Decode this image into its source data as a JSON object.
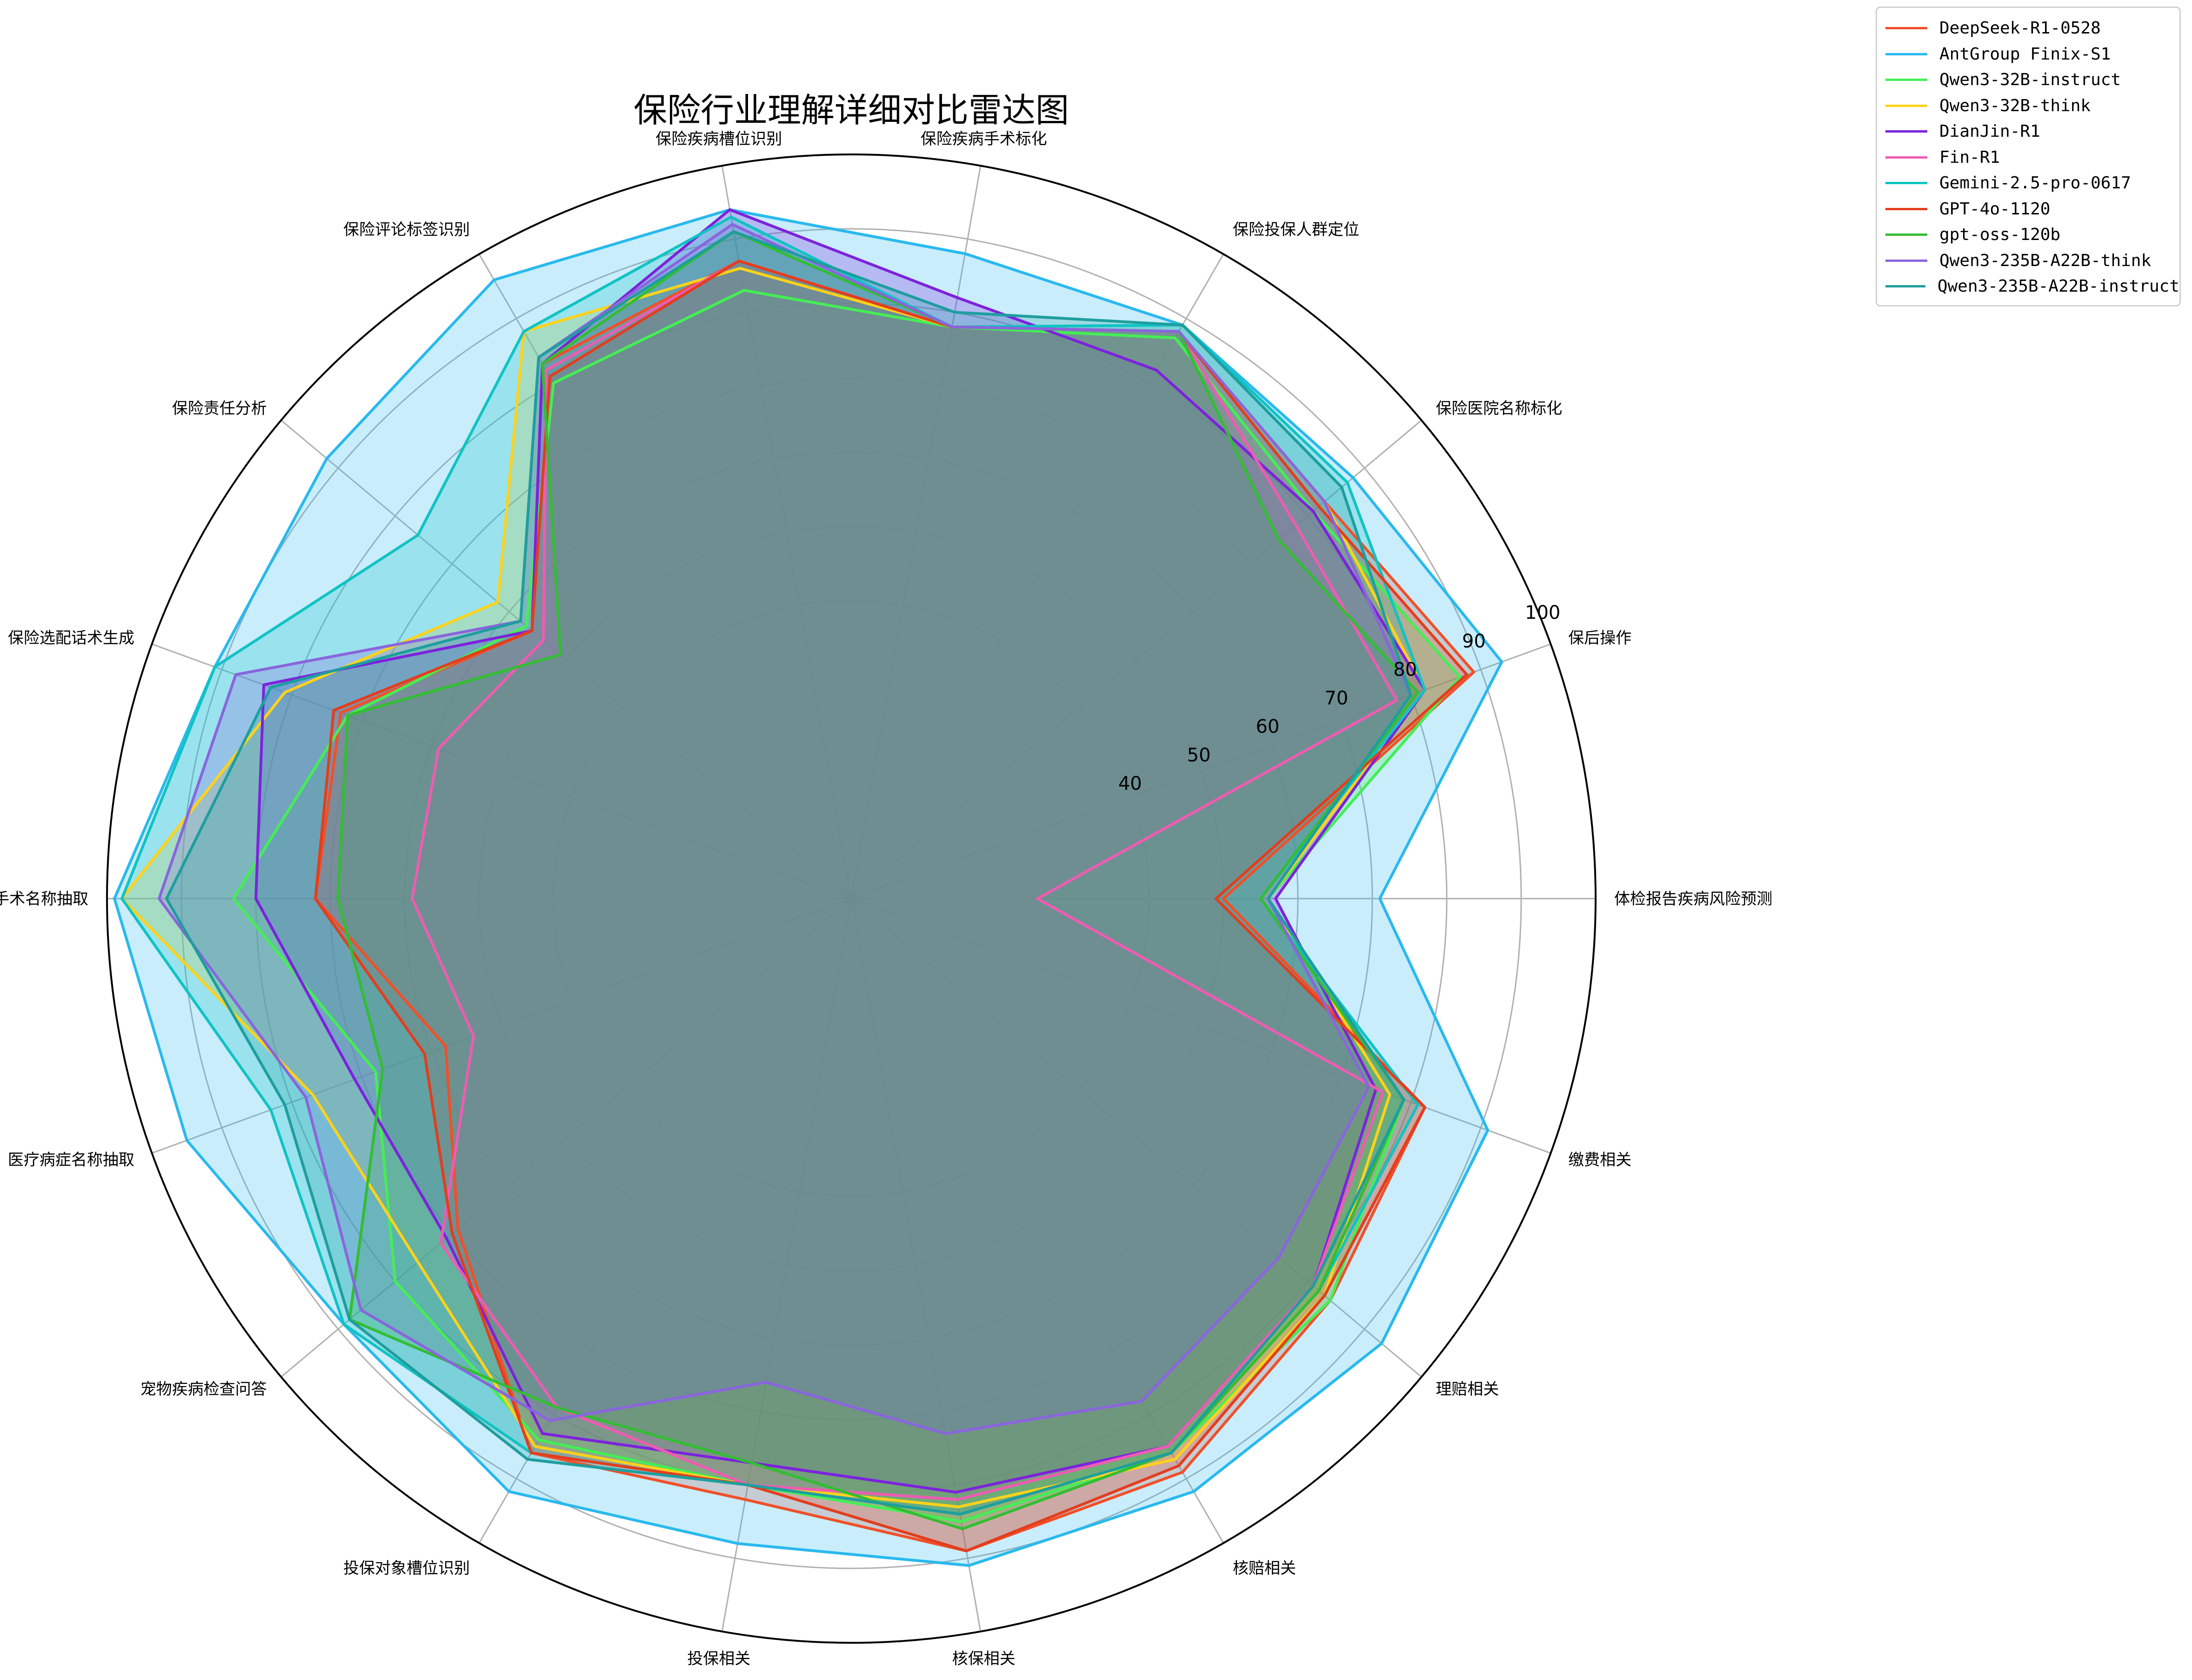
{
  "chart_data": {
    "type": "radar",
    "title": "保险行业理解详细对比雷达图",
    "categories": [
      "体检报告疾病风险预测",
      "保后操作",
      "保险医院名称标化",
      "保险投保人群定位",
      "保险疾病手术标化",
      "保险疾病槽位识别",
      "保险评论标签识别",
      "保险责任分析",
      "保险选配话术生成",
      "医疗手术名称抽取",
      "医疗病症名称抽取",
      "宠物疾病检查问答",
      "投保对象槽位识别",
      "投保相关",
      "核保相关",
      "核赔相关",
      "理赔相关",
      "缴费相关"
    ],
    "radial_ticks": [
      40,
      50,
      60,
      70,
      80,
      90,
      100
    ],
    "rlim": [
      0,
      100
    ],
    "grid": true,
    "legend": "top-right",
    "series": [
      {
        "name": "DeepSeek-R1-0528",
        "color": "#f0502a",
        "values": [
          50,
          89,
          83,
          88,
          78,
          87,
          83,
          56,
          73,
          72,
          58,
          69,
          86,
          82,
          89,
          89,
          84,
          82
        ]
      },
      {
        "name": "AntGroup Finix-S1",
        "color": "#29b9ee",
        "values": [
          71,
          93,
          88,
          89,
          88,
          94,
          96,
          92,
          91,
          99,
          95,
          89,
          92,
          88,
          91,
          92,
          93,
          91
        ]
      },
      {
        "name": "Qwen3-32B-instruct",
        "color": "#44ee55",
        "values": [
          56,
          87,
          81,
          87,
          78,
          83,
          80,
          57,
          72,
          83,
          68,
          80,
          84,
          80,
          85,
          86,
          84,
          79
        ]
      },
      {
        "name": "Qwen3-32B-think",
        "color": "#ffd21a",
        "values": [
          56,
          82,
          83,
          88,
          78,
          86,
          88,
          62,
          81,
          98,
          77,
          76,
          85,
          80,
          83,
          87,
          83,
          77
        ]
      },
      {
        "name": "DianJin-R1",
        "color": "#7d22dd",
        "values": [
          57,
          82,
          81,
          82,
          82,
          94,
          83,
          56,
          84,
          80,
          71,
          71,
          83,
          77,
          81,
          85,
          81,
          75
        ]
      },
      {
        "name": "Fin-R1",
        "color": "#ee5cb2",
        "values": [
          25,
          78,
          78,
          88,
          78,
          87,
          82,
          54,
          59,
          59,
          54,
          72,
          79,
          80,
          82,
          85,
          81,
          76
        ]
      },
      {
        "name": "Gemini-2.5-pro-0617",
        "color": "#10c3c3",
        "values": [
          55,
          82,
          87,
          89,
          78,
          93,
          88,
          76,
          91,
          98,
          83,
          89,
          86,
          80,
          84,
          86,
          82,
          81
        ]
      },
      {
        "name": "GPT-4o-1120",
        "color": "#e23e1e",
        "values": [
          49,
          88,
          82,
          88,
          78,
          87,
          81,
          56,
          74,
          72,
          61,
          70,
          86,
          80,
          89,
          88,
          83,
          82
        ]
      },
      {
        "name": "gpt-oss-120b",
        "color": "#33bd33",
        "values": [
          55,
          81,
          75,
          88,
          78,
          91,
          83,
          51,
          72,
          69,
          67,
          88,
          79,
          77,
          86,
          86,
          82,
          79
        ]
      },
      {
        "name": "Qwen3-235B-A22B-think",
        "color": "#8a65dd",
        "values": [
          56,
          80,
          83,
          88,
          78,
          92,
          84,
          58,
          88,
          93,
          78,
          86,
          81,
          66,
          73,
          78,
          75,
          74
        ]
      },
      {
        "name": "Qwen3-235B-A22B-instruct",
        "color": "#1e9e9e",
        "values": [
          56,
          80,
          86,
          89,
          80,
          91,
          84,
          58,
          83,
          92,
          81,
          88,
          87,
          80,
          84,
          86,
          81,
          79
        ]
      }
    ]
  }
}
